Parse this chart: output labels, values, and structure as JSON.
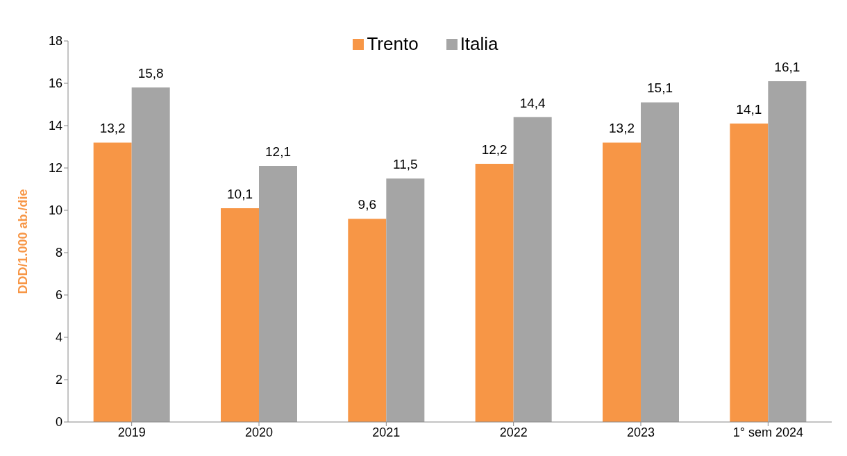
{
  "chart_data": {
    "type": "bar",
    "ylabel": "DDD/1.000 ab./die",
    "categories": [
      "2019",
      "2020",
      "2021",
      "2022",
      "2023",
      "1° sem 2024"
    ],
    "series": [
      {
        "name": "Trento",
        "color": "#f79646",
        "values": [
          13.2,
          10.1,
          9.6,
          12.2,
          13.2,
          14.1
        ],
        "value_labels": [
          "13,2",
          "10,1",
          "9,6",
          "12,2",
          "13,2",
          "14,1"
        ]
      },
      {
        "name": "Italia",
        "color": "#a5a5a5",
        "values": [
          15.8,
          12.1,
          11.5,
          14.4,
          15.1,
          16.1
        ],
        "value_labels": [
          "15,8",
          "12,1",
          "11,5",
          "14,4",
          "15,1",
          "16,1"
        ]
      }
    ],
    "ylim": [
      0,
      18
    ],
    "yticks": [
      0,
      2,
      4,
      6,
      8,
      10,
      12,
      14,
      16,
      18
    ],
    "legend": "top"
  }
}
